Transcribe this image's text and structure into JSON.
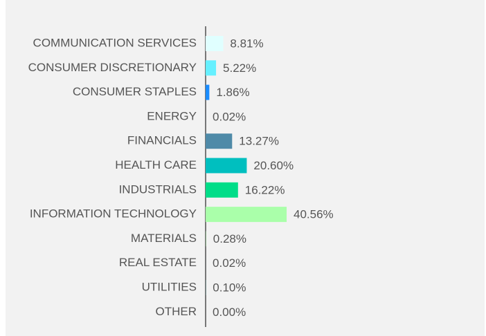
{
  "chart_data": {
    "type": "bar",
    "orientation": "horizontal",
    "categories": [
      "COMMUNICATION SERVICES",
      "CONSUMER DISCRETIONARY",
      "CONSUMER STAPLES",
      "ENERGY",
      "FINANCIALS",
      "HEALTH CARE",
      "INDUSTRIALS",
      "INFORMATION TECHNOLOGY",
      "MATERIALS",
      "REAL ESTATE",
      "UTILITIES",
      "OTHER"
    ],
    "values": [
      8.81,
      5.22,
      1.86,
      0.02,
      13.27,
      20.6,
      16.22,
      40.56,
      0.28,
      0.02,
      0.1,
      0.0
    ],
    "value_labels": [
      "8.81%",
      "5.22%",
      "1.86%",
      "0.02%",
      "13.27%",
      "20.60%",
      "16.22%",
      "40.56%",
      "0.28%",
      "0.02%",
      "0.10%",
      "0.00%"
    ],
    "colors": [
      "#e0ffff",
      "#66f0ff",
      "#1a8cff",
      "#2a5f80",
      "#4f8aa8",
      "#00bfbf",
      "#00dd88",
      "#aaffaa",
      "#8fbc8f",
      "#6a8fa0",
      "#7fd0d0",
      "#999999"
    ]
  }
}
